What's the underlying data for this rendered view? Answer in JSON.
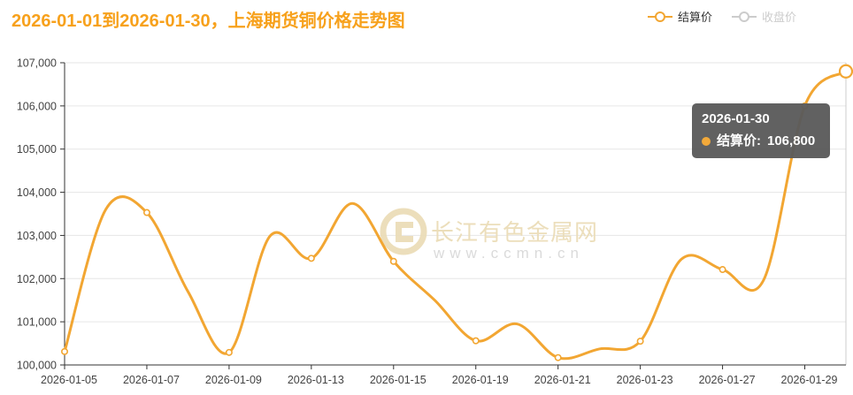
{
  "header": {
    "title": "2026-01-01到2026-01-30，上海期货铜价格走势图"
  },
  "legend": {
    "items": [
      {
        "label": "结算价",
        "active": true
      },
      {
        "label": "收盘价",
        "active": false
      }
    ]
  },
  "tooltip": {
    "date": "2026-01-30",
    "series_label": "结算价:",
    "value": "106,800"
  },
  "watermark": {
    "text": "长江有色金属网",
    "url": "www.ccmn.cn"
  },
  "colors": {
    "title": "#F7A11C",
    "line": "#F2A632",
    "inactive": "#CCCCCC",
    "axis": "#333333",
    "grid": "#E6E6E6",
    "right_border": "#CCCCCC",
    "label": "#444444",
    "tooltip_bg": "#5B5B5B",
    "marker_fill": "#FFFFFF",
    "watermark_text": "#EBDDB8",
    "watermark_url": "#D9D9D9"
  },
  "chart_data": {
    "type": "line",
    "title": "2026-01-01到2026-01-30，上海期货铜价格走势图",
    "x": [
      "2026-01-05",
      "2026-01-06",
      "2026-01-07",
      "2026-01-08",
      "2026-01-09",
      "2026-01-12",
      "2026-01-13",
      "2026-01-14",
      "2026-01-15",
      "2026-01-16",
      "2026-01-19",
      "2026-01-20",
      "2026-01-21",
      "2026-01-22",
      "2026-01-23",
      "2026-01-26",
      "2026-01-27",
      "2026-01-28",
      "2026-01-29",
      "2026-01-30"
    ],
    "series": [
      {
        "name": "结算价",
        "visible": true,
        "values": [
          100310,
          103600,
          103530,
          101700,
          100290,
          102990,
          102470,
          103740,
          102400,
          101500,
          100560,
          100950,
          100170,
          100370,
          100550,
          102450,
          102210,
          101970,
          106000,
          106800
        ]
      },
      {
        "name": "收盘价",
        "visible": false,
        "values": []
      }
    ],
    "xlabel": "",
    "ylabel": "",
    "ylim": [
      100000,
      107000
    ],
    "y_tick_step": 1000,
    "x_label_every": 2,
    "x_tick_labels": [
      "2026-01-05",
      "2026-01-07",
      "2026-01-09",
      "2026-01-13",
      "2026-01-15",
      "2026-01-19",
      "2026-01-21",
      "2026-01-23",
      "2026-01-27",
      "2026-01-29"
    ],
    "grid": true,
    "legend_position": "top-right",
    "smooth": true,
    "highlighted_point": {
      "date": "2026-01-30",
      "value": 106800
    }
  }
}
